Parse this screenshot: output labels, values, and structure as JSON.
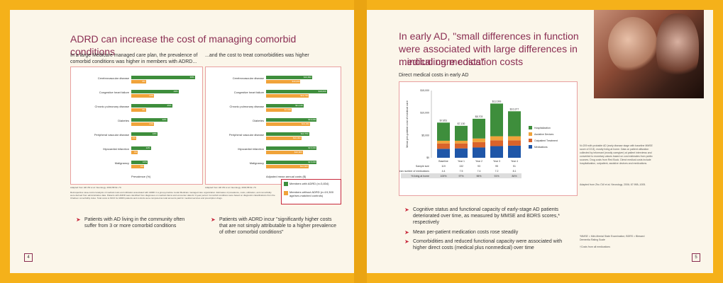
{
  "left": {
    "title": "ADRD can increase the cost of managing comorbid conditions",
    "subtitle_left": "In a large Medicare managed care plan, the prevalence of comorbid conditions was higher in members with ADRD...",
    "subtitle_right": "...and the cost to treat comorbidities was higher",
    "categories": [
      "Cerebrovascular disease",
      "Congestive heart failure",
      "Chronic pulmonary disease",
      "Diabetes",
      "Peripheral vascular disease",
      "Myocardial infarction",
      "Malignancy"
    ],
    "prevalence_axis": "Prevalence (%)",
    "cost_axis": "Adjusted mean annual costs ($)",
    "prev_adrd": [
      39,
      29,
      25,
      22,
      16,
      12,
      10
    ],
    "prev_ctrl": [
      9,
      14,
      9,
      14,
      3,
      4,
      8
    ],
    "cost_adrd": [
      13662,
      18000,
      11120,
      15000,
      12753,
      15000,
      15000
    ],
    "cost_ctrl": [
      10200,
      12700,
      7600,
      13062,
      10494,
      10900,
      12600
    ],
    "cost_adrd_labels": [
      "$13,662",
      "$18,000",
      "$11,120",
      "$15,000",
      "$12,753",
      "$15,000",
      "$15,000"
    ],
    "cost_ctrl_labels": [
      "$10,200",
      "$12,700",
      "$7,600",
      "$13,062",
      "$10,494",
      "$10,900",
      "$12,600"
    ],
    "source_left": "Adapted from Hill JW et al. Neurology. 2002;58:62–70.",
    "source_right": "Adapted from Hill JW et al. Neurology. 2002;58:62–70.",
    "legend": {
      "adrd": "Members with ADRD (n=3,834)",
      "ctrl": "Members without ADRD (n=19,300 age/sex-matched controls)"
    },
    "footnote": "Retrospective case-control analysis of medical costs and utilization associated with ADRD in a group-practice model Medicare managed care organization. Estimates of prevalence, costs, utilization, and comorbidity were derived from administrative data. Patients with ADRD were identified from diagnoses on medical claims and encounter data for 3-year period. Comorbid conditions were based on diagnostic classifications from the Charlson comorbidity index. Total costs to MCO for ADRD patients and controls were computed as total amounts paid for medical services and prescription drugs.",
    "bullets": [
      "Patients with AD living in the community often suffer from 3 or more comorbid conditions",
      "Patients with ADRD incur \"significantly higher costs that are not simply attributable to a higher prevalence of other comorbid conditions\""
    ],
    "page": "4"
  },
  "right": {
    "title": "In early AD, \"small differences in function were associated with large differences in medical care costs\"",
    "title2": "...including medication costs",
    "subtitle": "Direct medical costs in early AD",
    "y_axis": "Mean per-patient cost of medical care",
    "yticks": [
      "$15,000",
      "$10,000",
      "$5,000",
      "$0"
    ],
    "years": [
      "Baseline",
      "Year 1",
      "Year 2",
      "Year 3",
      "Year 4"
    ],
    "totals": [
      "$7,851",
      "$7,130",
      "$8,703",
      "$12,099",
      "$10,377"
    ],
    "legend": [
      "Hospitalization",
      "Assistive Devices",
      "Outpatient Treatment",
      "Medications"
    ],
    "table": {
      "rows": [
        [
          "Sample size",
          "119",
          "132",
          "93",
          "95",
          "51"
        ],
        [
          "Mean number of medications",
          "4.4",
          "7.5",
          "7.4",
          "7.2",
          "8.1"
        ],
        [
          "% living at home",
          "100%",
          "97%",
          "96%",
          "91%",
          "84%"
        ]
      ]
    },
    "side_note": "N=209 with probable AD (early disease stage with baseline MMSE score of 22.8), mostly living at home. Data on patient utilization collected by informant (mostly caregiver) at patient interviews and converted to monetary values based on cost estimates from public sources. Drug costs from Red Book. Direct medical costs include hospitalization, outpatient, assistive devices and medications.",
    "side_source": "Adapted from Zhu CW et al. Neurology. 2006; 67:998–1005.",
    "bullets": [
      "Cognitive status and functional capacity of early-stage AD patients deteriorated over time, as measured by MMSE and BDRS scores,* respectively",
      "Mean per-patient medication costs rose steadily",
      "Comorbidities and reduced functional capacity were associated with higher direct costs (medical plus nonmedical) over time"
    ],
    "abbrev": "*MMSE = Mini-Mental State Examination; BDRS = Blessed Dementia Rating Scale",
    "abbrev2": "†Costs from all medications",
    "page": "5"
  },
  "chart_data": {
    "type": "bar",
    "title": "Direct medical costs in early AD",
    "categories": [
      "Baseline",
      "Year 1",
      "Year 2",
      "Year 3",
      "Year 4"
    ],
    "series": [
      {
        "name": "Medications",
        "values": [
          2000,
          2100,
          2300,
          2600,
          2700
        ]
      },
      {
        "name": "Outpatient Treatment",
        "values": [
          1200,
          1100,
          1200,
          1300,
          1200
        ]
      },
      {
        "name": "Assistive Devices",
        "values": [
          600,
          600,
          800,
          900,
          900
        ]
      },
      {
        "name": "Hospitalization",
        "values": [
          4051,
          3330,
          4403,
          7299,
          5577
        ]
      }
    ],
    "ylim": [
      0,
      15000
    ],
    "colors": {
      "Medications": "#1f56a8",
      "Outpatient Treatment": "#d9632b",
      "Assistive Devices": "#f0a33a",
      "Hospitalization": "#3e8e3c"
    }
  }
}
